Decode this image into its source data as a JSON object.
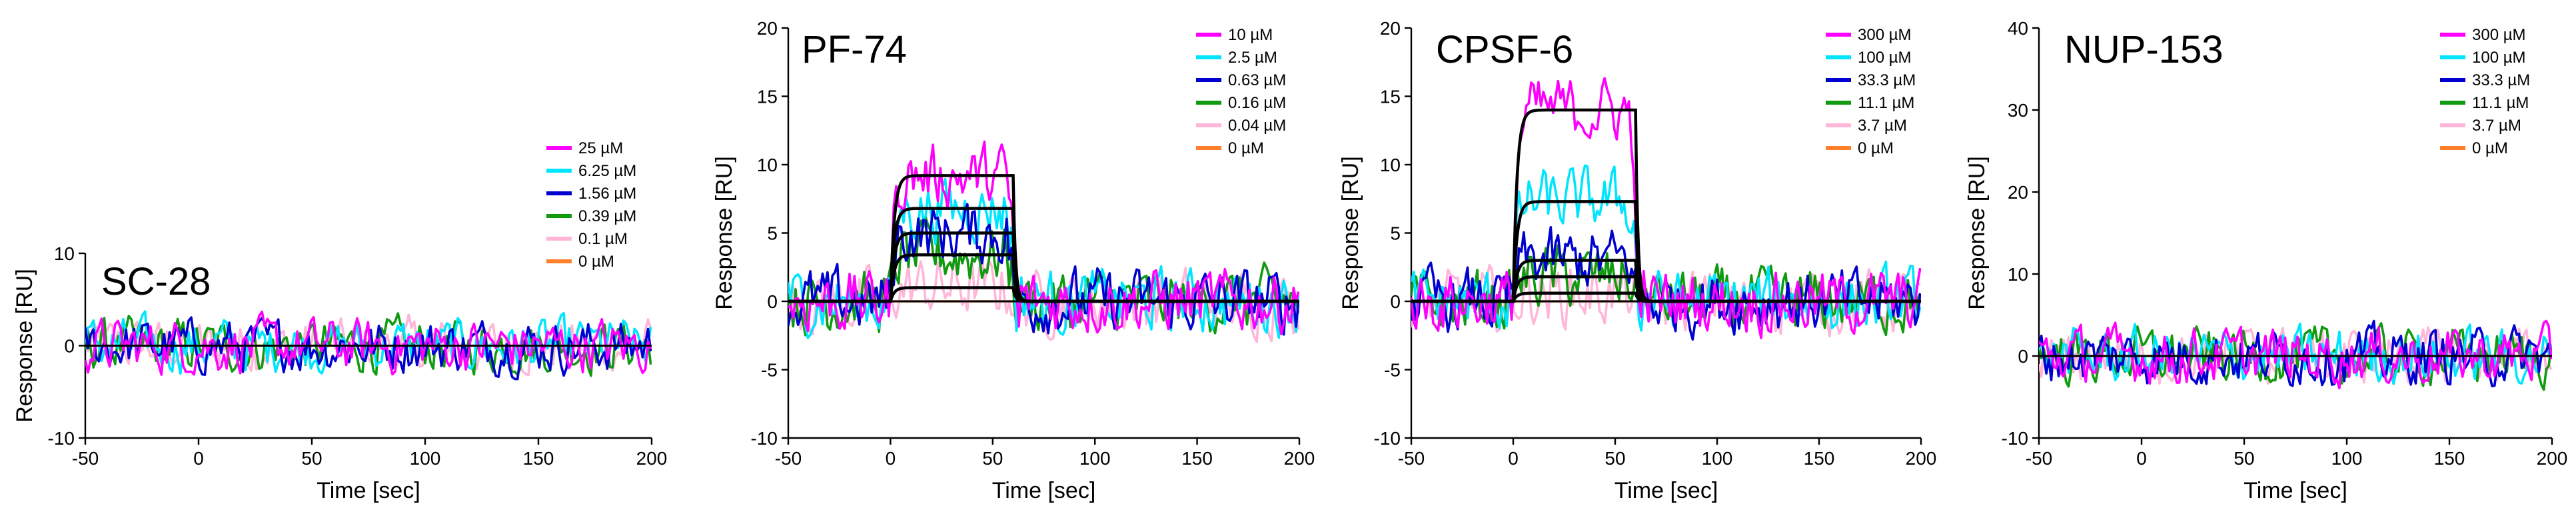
{
  "colors": {
    "magenta": "#ff00ff",
    "cyan": "#00e5ff",
    "blue": "#0000d0",
    "green": "#0f9a0f",
    "pink": "#ffb6d9",
    "orange": "#ff7f2a",
    "fit": "#000000"
  },
  "chart_data": [
    {
      "type": "line",
      "title": "SC-28",
      "xlabel": "Time [sec]",
      "ylabel": "Response [RU]",
      "xlim": [
        -50,
        200
      ],
      "ylim": [
        -10,
        10
      ],
      "xticks": [
        -50,
        0,
        50,
        100,
        150,
        200
      ],
      "yticks": [
        -10,
        0,
        10
      ],
      "legend_location": "upper-right",
      "injection": [
        0,
        60
      ],
      "fitted_curves": false,
      "noise": 3.0,
      "series": [
        {
          "name": "25 µM",
          "color": "magenta",
          "plateau": 0
        },
        {
          "name": "6.25 µM",
          "color": "cyan",
          "plateau": 0
        },
        {
          "name": "1.56 µM",
          "color": "blue",
          "plateau": 0
        },
        {
          "name": "0.39 µM",
          "color": "green",
          "plateau": 0
        },
        {
          "name": "0.1 µM",
          "color": "pink",
          "plateau": 0
        },
        {
          "name": "0 µM",
          "color": "orange",
          "plateau": 0
        }
      ]
    },
    {
      "type": "line",
      "title": "PF-74",
      "xlabel": "Time [sec]",
      "ylabel": "Response [RU]",
      "xlim": [
        -50,
        200
      ],
      "ylim": [
        -10,
        20
      ],
      "xticks": [
        -50,
        0,
        50,
        100,
        150,
        200
      ],
      "yticks": [
        -10,
        -5,
        0,
        5,
        10,
        15,
        20
      ],
      "legend_location": "upper-right",
      "injection": [
        0,
        60
      ],
      "fitted_curves": true,
      "noise": 2.4,
      "series": [
        {
          "name": "10 µM",
          "color": "magenta",
          "plateau": 9.2
        },
        {
          "name": "2.5 µM",
          "color": "cyan",
          "plateau": 6.8
        },
        {
          "name": "0.63 µM",
          "color": "blue",
          "plateau": 5.0
        },
        {
          "name": "0.16 µM",
          "color": "green",
          "plateau": 3.4
        },
        {
          "name": "0.04 µM",
          "color": "pink",
          "plateau": 1.0
        },
        {
          "name": "0 µM",
          "color": "orange",
          "plateau": 0
        }
      ]
    },
    {
      "type": "line",
      "title": "CPSF-6",
      "xlabel": "Time [sec]",
      "ylabel": "Response [RU]",
      "xlim": [
        -50,
        200
      ],
      "ylim": [
        -10,
        20
      ],
      "xticks": [
        -50,
        0,
        50,
        100,
        150,
        200
      ],
      "yticks": [
        -10,
        -5,
        0,
        5,
        10,
        15,
        20
      ],
      "legend_location": "upper-right",
      "injection": [
        0,
        60
      ],
      "fitted_curves": true,
      "noise": 2.4,
      "series": [
        {
          "name": "300 µM",
          "color": "magenta",
          "plateau": 14.0
        },
        {
          "name": "100 µM",
          "color": "cyan",
          "plateau": 7.3
        },
        {
          "name": "33.3 µM",
          "color": "blue",
          "plateau": 3.0
        },
        {
          "name": "11.1 µM",
          "color": "green",
          "plateau": 1.8
        },
        {
          "name": "3.7 µM",
          "color": "pink",
          "plateau": 0.6
        },
        {
          "name": "0 µM",
          "color": "orange",
          "plateau": 0
        }
      ]
    },
    {
      "type": "line",
      "title": "NUP-153",
      "xlabel": "Time [sec]",
      "ylabel": "Response [RU]",
      "xlim": [
        -50,
        200
      ],
      "ylim": [
        -10,
        40
      ],
      "xticks": [
        -50,
        0,
        50,
        100,
        150,
        200
      ],
      "yticks": [
        -10,
        0,
        10,
        20,
        30,
        40
      ],
      "legend_location": "upper-right",
      "injection": [
        0,
        60
      ],
      "fitted_curves": false,
      "noise": 3.5,
      "series": [
        {
          "name": "300 µM",
          "color": "magenta",
          "plateau": 0
        },
        {
          "name": "100 µM",
          "color": "cyan",
          "plateau": 0
        },
        {
          "name": "33.3 µM",
          "color": "blue",
          "plateau": 0
        },
        {
          "name": "11.1 µM",
          "color": "green",
          "plateau": 0
        },
        {
          "name": "3.7 µM",
          "color": "pink",
          "plateau": 0
        },
        {
          "name": "0 µM",
          "color": "orange",
          "plateau": 0
        }
      ]
    }
  ]
}
